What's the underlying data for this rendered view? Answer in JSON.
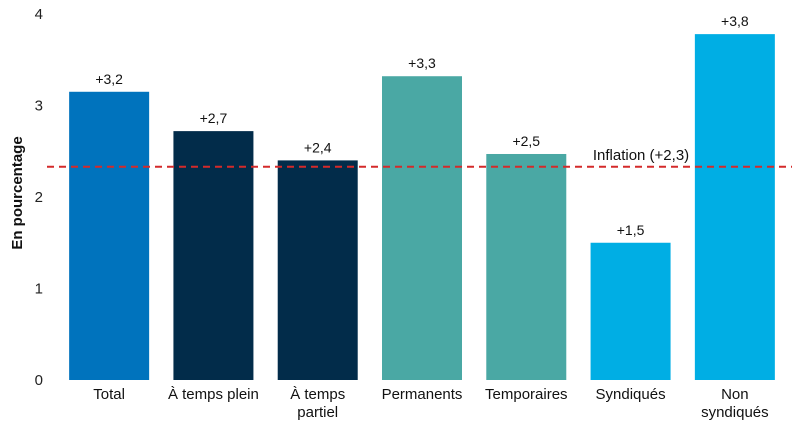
{
  "chart_data": {
    "type": "bar",
    "ylabel": "En pourcentage",
    "ylim": [
      0,
      4
    ],
    "yticks": [
      "0",
      "1",
      "2",
      "3",
      "4"
    ],
    "grid": false,
    "categories": [
      [
        "Total"
      ],
      [
        "À temps plein"
      ],
      [
        "À temps",
        "partiel"
      ],
      [
        "Permanents"
      ],
      [
        "Temporaires"
      ],
      [
        "Syndiqués"
      ],
      [
        "Non",
        "syndiqués"
      ]
    ],
    "values": [
      3.15,
      2.72,
      2.4,
      3.32,
      2.47,
      1.5,
      3.78
    ],
    "data_labels": [
      "+3,2",
      "+2,7",
      "+2,4",
      "+3,3",
      "+2,5",
      "+1,5",
      "+3,8"
    ],
    "colors": [
      "#0073bd",
      "#022c4a",
      "#022c4a",
      "#4aa8a4",
      "#4aa8a4",
      "#00aee4",
      "#00aee4"
    ],
    "reference_line": {
      "value": 2.33,
      "label": "Inflation (+2,3)",
      "color": "#d42a2a",
      "style": "dashed"
    }
  }
}
